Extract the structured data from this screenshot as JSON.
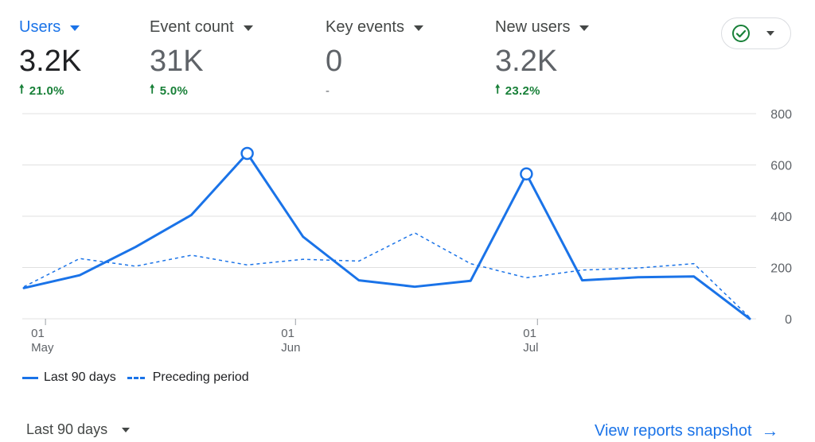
{
  "metrics": [
    {
      "label": "Users",
      "value": "3.2K",
      "delta": "21.0%",
      "active": true
    },
    {
      "label": "Event count",
      "value": "31K",
      "delta": "5.0%",
      "active": false
    },
    {
      "label": "Key events",
      "value": "0",
      "delta": "-",
      "active": false
    },
    {
      "label": "New users",
      "value": "3.2K",
      "delta": "23.2%",
      "active": false
    }
  ],
  "status_icon": "check-circle-icon",
  "colors": {
    "accent": "#1a73e8",
    "positive": "#188038",
    "grid": "#e0e0e0",
    "check": "#188038"
  },
  "chart_data": {
    "type": "line",
    "x_ticks": [
      {
        "day": "01",
        "month": "May"
      },
      {
        "day": "01",
        "month": "Jun"
      },
      {
        "day": "01",
        "month": "Jul"
      }
    ],
    "y_ticks": [
      "800",
      "600",
      "400",
      "200",
      "0"
    ],
    "ylim": [
      0,
      800
    ],
    "grid": true,
    "series": [
      {
        "name": "Last 90 days",
        "style": "solid",
        "values": [
          120,
          170,
          280,
          405,
          645,
          320,
          150,
          125,
          148,
          565,
          150,
          162,
          165,
          0
        ],
        "highlighted_points": [
          4,
          9
        ]
      },
      {
        "name": "Preceding period",
        "style": "dashed",
        "values": [
          125,
          235,
          205,
          248,
          210,
          232,
          225,
          335,
          215,
          160,
          190,
          198,
          215,
          5
        ]
      }
    ]
  },
  "footer": {
    "period_label": "Last 90 days",
    "snapshot_label": "View reports snapshot",
    "snapshot_arrow": "→"
  }
}
